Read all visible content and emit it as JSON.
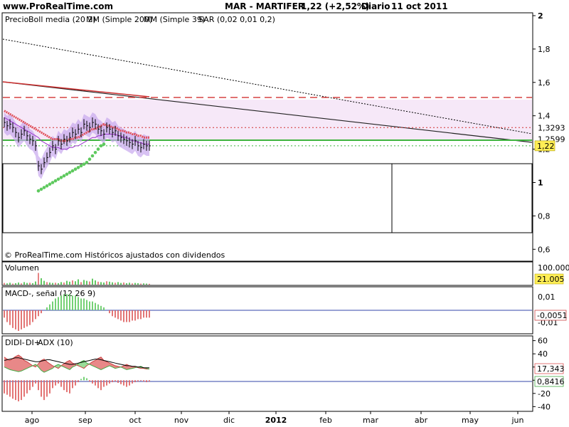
{
  "header": {
    "site": "www.ProRealTime.com",
    "instrument": "MAR - MARTIFER",
    "price_change": "1,22 (+2,52%)",
    "period": "Diario",
    "date": "11 oct 2011"
  },
  "price_panel": {
    "legend": {
      "precio": "Precio",
      "boll": "Boll media (20 2)",
      "mm200": "MM (Simple 200)",
      "mm39": "MM (Simple 39)",
      "sar": "SAR (0,02 0,01 0,2)"
    },
    "footer": "© ProRealTime.com Históricos ajustados con dividendos",
    "axis_labels": [
      "2",
      "1,8",
      "1,6",
      "1,4",
      "1,2",
      "1",
      "0,8",
      "0,6"
    ],
    "marker_labels": [
      "1,3293",
      "1,2599",
      "1,22"
    ]
  },
  "volume_panel": {
    "title": "Volumen",
    "axis_top": "100.000",
    "last_value": "21.005"
  },
  "macd_panel": {
    "title": "MACD-, señal (12 26 9)",
    "axis_labels": [
      "0,01",
      "-0,01"
    ],
    "last_value": "-0,0051"
  },
  "dmi_panel": {
    "title_di": "DI",
    "title_dim": "DI-",
    "title_dip": "DI+",
    "title_adx": "ADX (10)",
    "axis_labels": [
      "60",
      "40",
      "20",
      "0",
      "-20",
      "-40"
    ],
    "last_value": "17,343",
    "last_value_2": "0,8416"
  },
  "x_axis": [
    "ago",
    "sep",
    "oct",
    "nov",
    "dic",
    "2012",
    "feb",
    "mar",
    "abr",
    "may",
    "jun"
  ],
  "colors": {
    "background": "#ffffff",
    "panel_border": "#000000",
    "sar_green": "#5ec95e",
    "ma_red": "#e0505a",
    "boll_fill": "#c8a8ee",
    "support_green": "#3fb43f",
    "resistance_red": "#d23232",
    "vol_green": "#3cba3c",
    "macd_green": "#66cc66",
    "macd_red": "#e06666",
    "dmi_red": "#e88888",
    "dmi_green": "#99dd99"
  },
  "chart_data": [
    {
      "type": "line",
      "panel": "price",
      "x": [
        "ago",
        "ago",
        "ago",
        "ago",
        "ago",
        "ago",
        "ago",
        "ago",
        "ago",
        "ago",
        "ago",
        "ago",
        "ago",
        "ago",
        "ago",
        "ago",
        "ago",
        "ago",
        "ago",
        "ago",
        "ago",
        "ago",
        "sep",
        "sep",
        "sep",
        "sep",
        "sep",
        "sep",
        "sep",
        "sep",
        "sep",
        "sep",
        "sep",
        "sep",
        "sep",
        "sep",
        "sep",
        "sep",
        "sep",
        "sep",
        "sep",
        "sep",
        "sep",
        "sep",
        "oct",
        "oct",
        "oct",
        "oct",
        "oct",
        "oct",
        "oct",
        "oct"
      ],
      "series": [
        {
          "values": [
            1.36,
            1.34,
            1.35,
            1.33,
            1.3,
            1.27,
            1.29,
            1.31,
            1.28,
            1.26,
            1.25,
            1.22,
            1.1,
            1.08,
            1.12,
            1.15,
            1.18,
            1.22,
            1.2,
            1.25,
            1.23,
            1.26,
            1.25,
            1.27,
            1.3,
            1.29,
            1.32,
            1.3,
            1.35,
            1.34,
            1.33,
            1.36,
            1.35,
            1.32,
            1.31,
            1.29,
            1.33,
            1.32,
            1.3,
            1.31,
            1.28,
            1.27,
            1.26,
            1.25,
            1.24,
            1.23,
            1.25,
            1.22,
            1.21,
            1.23,
            1.22,
            1.22
          ]
        },
        {
          "values": [
            1.44,
            1.43,
            1.42,
            1.41,
            1.4,
            1.39,
            1.38,
            1.37,
            1.36,
            1.35,
            1.34,
            1.33,
            1.32,
            1.3,
            1.29,
            1.28,
            1.27,
            1.26,
            1.26,
            1.26,
            1.25,
            1.25,
            1.25,
            1.26,
            1.26,
            1.27,
            1.27,
            1.28,
            1.29,
            1.3,
            1.31,
            1.32,
            1.32,
            1.33,
            1.33,
            1.34,
            1.34,
            1.34,
            1.34,
            1.34,
            1.33,
            1.33,
            1.32,
            1.32,
            1.31,
            1.3,
            1.3,
            1.29,
            1.29,
            1.28,
            1.28,
            1.28
          ]
        },
        {
          "values": [
            null,
            null,
            null,
            null,
            null,
            null,
            null,
            null,
            null,
            null,
            null,
            null,
            0.95,
            0.96,
            0.97,
            0.98,
            0.99,
            1.0,
            1.01,
            1.02,
            1.03,
            1.04,
            1.05,
            1.06,
            1.07,
            1.08,
            1.09,
            1.1,
            1.11,
            1.12,
            1.14,
            1.16,
            1.18,
            1.2,
            1.22,
            1.23,
            null,
            null,
            null,
            null,
            null,
            null,
            null,
            null,
            null,
            null,
            null,
            null,
            null,
            null,
            null,
            null
          ]
        },
        {
          "values": [
            1.43,
            1.42,
            1.41,
            1.4,
            1.39,
            1.38,
            1.37,
            1.36,
            1.35,
            1.34,
            1.33,
            1.32,
            1.31,
            1.3,
            1.29,
            1.28,
            1.27,
            1.26,
            1.26,
            1.26,
            1.25,
            1.25,
            1.25,
            1.26,
            1.26,
            1.27,
            1.27,
            1.28,
            1.29,
            1.3,
            1.31,
            1.32,
            1.32,
            1.33,
            1.34,
            1.35,
            1.34,
            1.34,
            1.33,
            1.33,
            1.32,
            1.31,
            1.31,
            1.3,
            1.3,
            1.29,
            1.29,
            1.28,
            1.28,
            1.27,
            1.27,
            1.27
          ]
        }
      ],
      "ylim": [
        0.55,
        2.0
      ],
      "reference_lines": [
        1.51,
        1.3293,
        1.2599,
        1.22,
        1.08
      ]
    },
    {
      "type": "bar",
      "panel": "volume",
      "values": [
        8,
        6,
        9,
        5,
        7,
        10,
        6,
        12,
        8,
        9,
        7,
        15,
        55,
        30,
        18,
        12,
        10,
        8,
        9,
        7,
        12,
        10,
        18,
        14,
        20,
        16,
        25,
        12,
        22,
        18,
        15,
        28,
        20,
        14,
        12,
        10,
        16,
        14,
        11,
        9,
        12,
        8,
        10,
        7,
        9,
        6,
        8,
        7,
        5,
        6,
        5,
        4
      ],
      "ylim": [
        0,
        100
      ]
    },
    {
      "type": "bar",
      "panel": "macd",
      "values": [
        -0.005,
        -0.008,
        -0.01,
        -0.012,
        -0.013,
        -0.014,
        -0.013,
        -0.012,
        -0.011,
        -0.01,
        -0.008,
        -0.006,
        -0.004,
        -0.002,
        0.0,
        0.002,
        0.004,
        0.006,
        0.008,
        0.009,
        0.01,
        0.011,
        0.011,
        0.011,
        0.01,
        0.01,
        0.009,
        0.008,
        0.008,
        0.007,
        0.006,
        0.006,
        0.005,
        0.004,
        0.003,
        0.002,
        0.0,
        -0.002,
        -0.004,
        -0.005,
        -0.006,
        -0.007,
        -0.008,
        -0.008,
        -0.008,
        -0.007,
        -0.007,
        -0.006,
        -0.006,
        -0.005,
        -0.005,
        -0.005
      ],
      "ylim": [
        -0.015,
        0.015
      ]
    },
    {
      "type": "area",
      "panel": "dmi",
      "series": [
        {
          "name": "DI-",
          "values": [
            35,
            32,
            30,
            33,
            36,
            38,
            35,
            30,
            28,
            25,
            22,
            20,
            25,
            30,
            32,
            28,
            25,
            22,
            20,
            18,
            22,
            25,
            28,
            30,
            26,
            24,
            22,
            20,
            18,
            22,
            25,
            28,
            30,
            33,
            35,
            30,
            28,
            26,
            24,
            22,
            21,
            20,
            22,
            24,
            22,
            21,
            20,
            19,
            18,
            18,
            17,
            17
          ]
        },
        {
          "name": "DI+",
          "values": [
            20,
            18,
            16,
            15,
            14,
            13,
            14,
            16,
            18,
            20,
            22,
            24,
            20,
            15,
            12,
            14,
            16,
            18,
            22,
            24,
            22,
            20,
            18,
            16,
            20,
            22,
            25,
            28,
            30,
            26,
            24,
            22,
            20,
            18,
            16,
            18,
            20,
            22,
            20,
            18,
            19,
            20,
            18,
            16,
            17,
            18,
            19,
            20,
            21,
            19,
            18,
            17
          ]
        },
        {
          "name": "ADX (10)",
          "values": [
            30,
            31,
            32,
            33,
            34,
            34,
            33,
            32,
            31,
            30,
            29,
            28,
            28,
            29,
            30,
            31,
            31,
            30,
            29,
            28,
            27,
            26,
            25,
            24,
            24,
            25,
            26,
            27,
            28,
            29,
            30,
            31,
            32,
            32,
            31,
            30,
            29,
            28,
            27,
            26,
            25,
            24,
            23,
            22,
            22,
            21,
            21,
            20,
            20,
            19,
            19,
            19
          ]
        }
      ],
      "histogram": [
        -20,
        -22,
        -25,
        -28,
        -30,
        -32,
        -30,
        -25,
        -20,
        -15,
        -10,
        -5,
        -15,
        -25,
        -30,
        -25,
        -20,
        -12,
        -8,
        -5,
        -10,
        -15,
        -18,
        -20,
        -12,
        -8,
        -3,
        2,
        5,
        3,
        -2,
        -5,
        -8,
        -12,
        -15,
        -10,
        -8,
        -5,
        -3,
        -2,
        -4,
        -6,
        -8,
        -10,
        -8,
        -5,
        -3,
        -2,
        -1,
        -2,
        -3,
        -2
      ],
      "ylim": [
        -45,
        65
      ]
    }
  ]
}
